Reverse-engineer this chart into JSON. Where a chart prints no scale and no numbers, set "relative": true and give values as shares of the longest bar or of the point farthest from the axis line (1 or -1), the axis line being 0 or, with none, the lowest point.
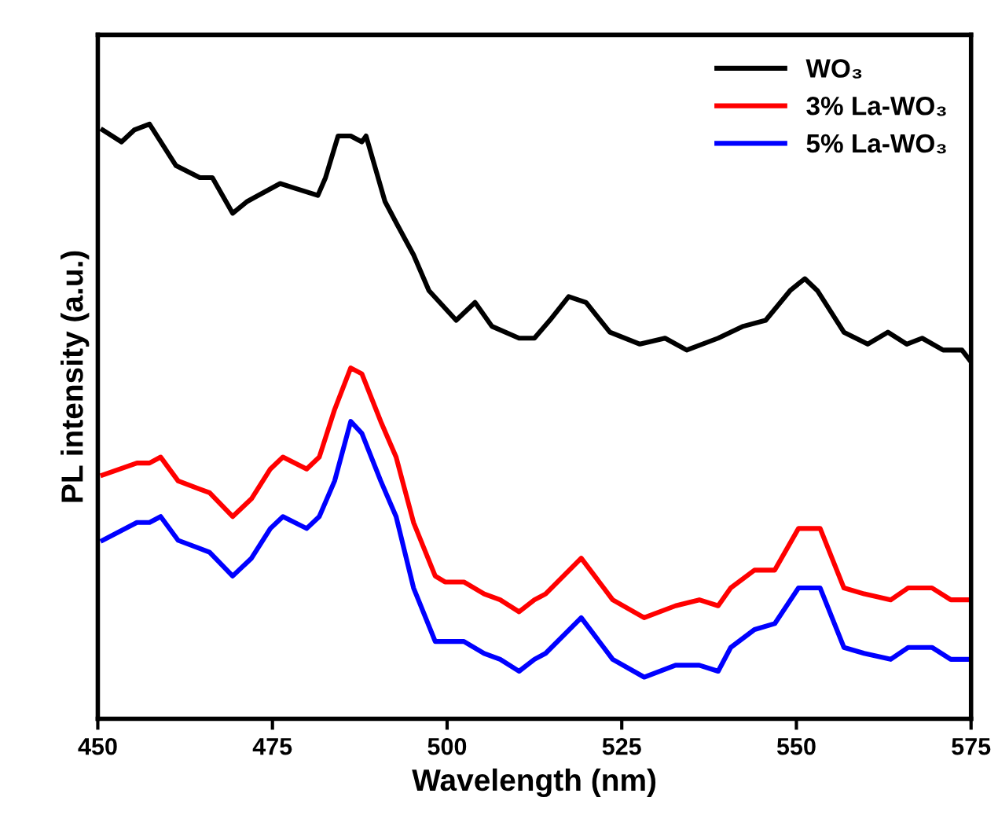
{
  "chart_data": {
    "type": "line",
    "relative": true,
    "xlabel": "Wavelength (nm)",
    "ylabel": "PL intensity (a.u.)",
    "xlim": [
      450,
      575
    ],
    "xticks": [
      450,
      475,
      500,
      525,
      550,
      575
    ],
    "grid": false,
    "legend": "top right",
    "line_style": "solid",
    "marker": "none",
    "tick_labels": "x",
    "series": [
      {
        "name": "WO₃",
        "color": "#000000",
        "x": [
          450.7,
          453.4,
          455.2,
          457.4,
          461.2,
          464.6,
          466.4,
          469.3,
          471.4,
          476.1,
          478.8,
          481.5,
          482.6,
          484.4,
          486.2,
          487.8,
          488.4,
          491.1,
          492.9,
          495.2,
          497.4,
          501.3,
          504.0,
          506.4,
          510.3,
          512.5,
          514.7,
          517.4,
          519.9,
          523.3,
          527.6,
          531.2,
          534.3,
          538.8,
          542.4,
          545.6,
          549.1,
          551.2,
          553.0,
          556.8,
          560.2,
          563.1,
          565.8,
          568.0,
          571.0,
          573.7,
          575.0
        ],
        "values": [
          0.99,
          0.97,
          0.99,
          1.0,
          0.93,
          0.91,
          0.91,
          0.85,
          0.87,
          0.9,
          0.89,
          0.88,
          0.91,
          0.98,
          0.98,
          0.97,
          0.98,
          0.87,
          0.83,
          0.78,
          0.72,
          0.67,
          0.7,
          0.66,
          0.64,
          0.64,
          0.67,
          0.71,
          0.7,
          0.65,
          0.63,
          0.64,
          0.62,
          0.64,
          0.66,
          0.67,
          0.72,
          0.74,
          0.72,
          0.65,
          0.63,
          0.65,
          0.63,
          0.64,
          0.62,
          0.62,
          0.6
        ]
      },
      {
        "name": "3% La-WO₃",
        "color": "#ff0000",
        "x": [
          450.7,
          455.6,
          457.4,
          459.0,
          461.5,
          466.0,
          469.3,
          472.0,
          474.7,
          476.5,
          479.9,
          481.7,
          483.9,
          486.2,
          487.8,
          490.5,
          492.7,
          495.2,
          498.3,
          499.7,
          502.4,
          505.3,
          507.6,
          510.3,
          512.5,
          514.1,
          519.2,
          523.7,
          528.2,
          532.7,
          536.1,
          538.8,
          540.6,
          544.0,
          546.9,
          550.3,
          553.4,
          556.8,
          559.7,
          563.5,
          566.0,
          569.4,
          572.1,
          575.0
        ],
        "values": [
          0.41,
          0.43,
          0.43,
          0.44,
          0.4,
          0.38,
          0.34,
          0.37,
          0.42,
          0.44,
          0.42,
          0.44,
          0.52,
          0.59,
          0.58,
          0.5,
          0.44,
          0.33,
          0.24,
          0.23,
          0.23,
          0.21,
          0.2,
          0.18,
          0.2,
          0.21,
          0.27,
          0.2,
          0.17,
          0.19,
          0.2,
          0.19,
          0.22,
          0.25,
          0.25,
          0.32,
          0.32,
          0.22,
          0.21,
          0.2,
          0.22,
          0.22,
          0.2,
          0.2
        ]
      },
      {
        "name": "5% La-WO₃",
        "color": "#0000ff",
        "x": [
          450.7,
          455.6,
          457.4,
          459.0,
          461.5,
          466.0,
          469.3,
          472.0,
          474.7,
          476.5,
          479.9,
          481.7,
          483.9,
          486.2,
          487.8,
          490.5,
          492.7,
          495.2,
          498.3,
          499.7,
          502.4,
          505.3,
          507.6,
          510.3,
          512.5,
          514.1,
          519.2,
          523.7,
          528.2,
          532.7,
          536.1,
          538.8,
          540.6,
          544.0,
          546.9,
          550.3,
          553.4,
          556.8,
          559.7,
          563.5,
          566.0,
          569.4,
          572.1,
          575.0
        ],
        "values": [
          0.3,
          0.33,
          0.33,
          0.34,
          0.3,
          0.28,
          0.24,
          0.27,
          0.32,
          0.34,
          0.32,
          0.34,
          0.4,
          0.5,
          0.48,
          0.4,
          0.34,
          0.22,
          0.13,
          0.13,
          0.13,
          0.11,
          0.1,
          0.08,
          0.1,
          0.11,
          0.17,
          0.1,
          0.07,
          0.09,
          0.09,
          0.08,
          0.12,
          0.15,
          0.16,
          0.22,
          0.22,
          0.12,
          0.11,
          0.1,
          0.12,
          0.12,
          0.1,
          0.1
        ]
      }
    ]
  }
}
